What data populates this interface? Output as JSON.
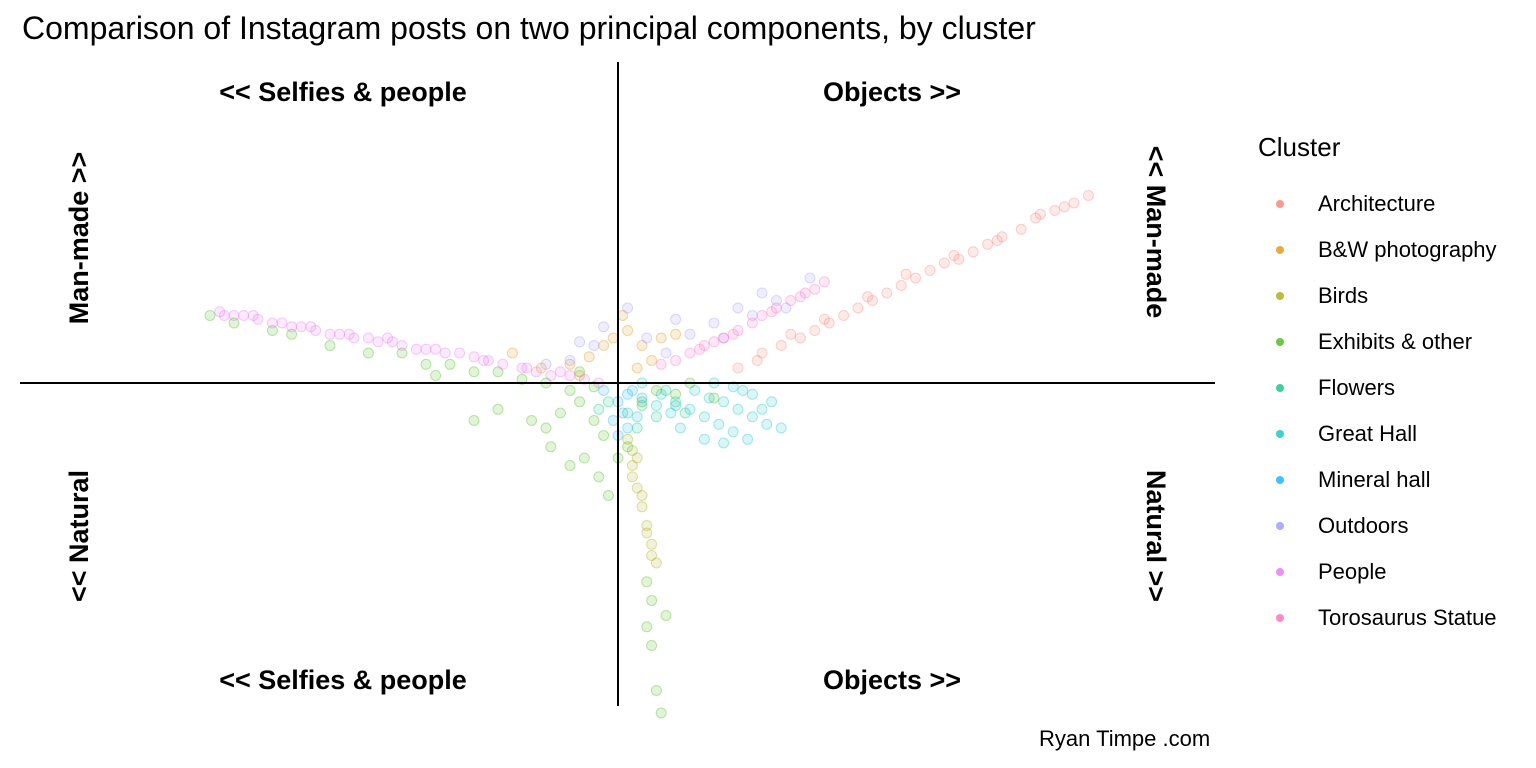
{
  "title": "Comparison of Instagram posts on two principal components, by cluster",
  "caption": "Ryan Timpe .com",
  "quadrant_labels": {
    "top_left": "<<  Selfies & people",
    "top_right": "Objects  >>",
    "bottom_left": "<<  Selfies & people",
    "bottom_right": "Objects  >>",
    "left_upper": "Man-made  >>",
    "left_lower": "<<  Natural",
    "right_upper": "<<  Man-made",
    "right_lower": "Natural  >>"
  },
  "legend": {
    "title": "Cluster",
    "position": "right"
  },
  "chart_data": {
    "type": "scatter",
    "title": "Comparison of Instagram posts on two principal components, by cluster",
    "xlabel": "",
    "ylabel": "",
    "xlim": [
      -1.0,
      1.0
    ],
    "ylim": [
      -1.0,
      1.0
    ],
    "grid": false,
    "reference_lines": {
      "x": 0,
      "y": 0
    },
    "point_alpha": 0.15,
    "legend_position": "right",
    "series": [
      {
        "name": "Architecture",
        "color": "#F8766D",
        "points": [
          [
            0.29,
            0.06
          ],
          [
            0.34,
            0.1
          ],
          [
            0.38,
            0.12
          ],
          [
            0.41,
            0.14
          ],
          [
            0.44,
            0.16
          ],
          [
            0.47,
            0.18
          ],
          [
            0.5,
            0.2
          ],
          [
            0.53,
            0.22
          ],
          [
            0.56,
            0.24
          ],
          [
            0.59,
            0.26
          ],
          [
            0.62,
            0.28
          ],
          [
            0.65,
            0.3
          ],
          [
            0.68,
            0.32
          ],
          [
            0.71,
            0.33
          ],
          [
            0.74,
            0.35
          ],
          [
            0.77,
            0.37
          ],
          [
            0.8,
            0.39
          ],
          [
            0.84,
            0.41
          ],
          [
            0.87,
            0.44
          ],
          [
            0.91,
            0.46
          ],
          [
            0.95,
            0.48
          ],
          [
            0.98,
            0.5
          ],
          [
            0.36,
            0.13
          ],
          [
            0.43,
            0.17
          ],
          [
            0.52,
            0.23
          ],
          [
            0.6,
            0.29
          ],
          [
            0.7,
            0.34
          ],
          [
            0.79,
            0.38
          ],
          [
            0.88,
            0.45
          ],
          [
            0.93,
            0.47
          ],
          [
            0.3,
            0.08
          ],
          [
            0.25,
            0.04
          ]
        ]
      },
      {
        "name": "B&W photography",
        "color": "#D89000",
        "points": [
          [
            0.01,
            0.18
          ],
          [
            0.02,
            0.14
          ],
          [
            -0.03,
            0.1
          ],
          [
            -0.06,
            0.07
          ],
          [
            0.05,
            0.1
          ],
          [
            0.09,
            0.12
          ],
          [
            0.12,
            0.13
          ],
          [
            -0.1,
            0.05
          ],
          [
            -0.16,
            0.04
          ],
          [
            -0.22,
            0.08
          ],
          [
            -0.08,
            0.02
          ],
          [
            0.04,
            0.04
          ],
          [
            0.07,
            0.06
          ],
          [
            -0.01,
            0.12
          ]
        ]
      },
      {
        "name": "Birds",
        "color": "#A3A500",
        "points": [
          [
            0.02,
            -0.15
          ],
          [
            0.03,
            -0.22
          ],
          [
            0.04,
            -0.28
          ],
          [
            0.05,
            -0.33
          ],
          [
            0.06,
            -0.38
          ],
          [
            0.07,
            -0.43
          ],
          [
            0.08,
            -0.48
          ],
          [
            0.05,
            -0.3
          ],
          [
            0.03,
            -0.25
          ],
          [
            0.06,
            -0.4
          ],
          [
            0.07,
            -0.46
          ],
          [
            0.04,
            -0.2
          ],
          [
            0.03,
            -0.18
          ]
        ]
      },
      {
        "name": "Exhibits & other",
        "color": "#39B600",
        "points": [
          [
            -0.05,
            -0.01
          ],
          [
            -0.1,
            -0.02
          ],
          [
            -0.15,
            0.0
          ],
          [
            -0.2,
            0.01
          ],
          [
            -0.25,
            0.03
          ],
          [
            -0.3,
            0.03
          ],
          [
            -0.35,
            0.05
          ],
          [
            -0.4,
            0.05
          ],
          [
            -0.45,
            0.08
          ],
          [
            -0.52,
            0.08
          ],
          [
            -0.6,
            0.1
          ],
          [
            -0.68,
            0.13
          ],
          [
            -0.72,
            0.14
          ],
          [
            -0.8,
            0.16
          ],
          [
            -0.85,
            0.18
          ],
          [
            -0.08,
            -0.05
          ],
          [
            -0.12,
            -0.08
          ],
          [
            -0.05,
            -0.1
          ],
          [
            -0.03,
            -0.14
          ],
          [
            -0.07,
            -0.2
          ],
          [
            -0.1,
            -0.22
          ],
          [
            -0.14,
            -0.17
          ],
          [
            -0.18,
            -0.1
          ],
          [
            -0.25,
            -0.07
          ],
          [
            -0.3,
            -0.1
          ],
          [
            -0.15,
            -0.12
          ],
          [
            -0.04,
            -0.25
          ],
          [
            -0.02,
            -0.3
          ],
          [
            0.0,
            -0.2
          ],
          [
            0.02,
            -0.17
          ],
          [
            0.05,
            -0.05
          ],
          [
            0.08,
            -0.02
          ],
          [
            0.12,
            -0.03
          ],
          [
            0.15,
            0.0
          ],
          [
            0.2,
            -0.04
          ],
          [
            0.06,
            -0.65
          ],
          [
            0.07,
            -0.7
          ],
          [
            0.08,
            -0.82
          ],
          [
            0.09,
            -0.88
          ],
          [
            0.06,
            -0.53
          ],
          [
            0.07,
            -0.58
          ],
          [
            0.1,
            -0.62
          ],
          [
            -0.08,
            0.03
          ],
          [
            -0.38,
            0.02
          ]
        ]
      },
      {
        "name": "Flowers",
        "color": "#00BF7D",
        "points": [
          [
            0.02,
            -0.08
          ],
          [
            0.05,
            -0.06
          ],
          [
            0.08,
            -0.09
          ],
          [
            -0.02,
            -0.05
          ],
          [
            0.1,
            -0.02
          ],
          [
            0.04,
            -0.12
          ],
          [
            0.12,
            -0.06
          ],
          [
            0.14,
            -0.08
          ],
          [
            -0.04,
            -0.07
          ]
        ]
      },
      {
        "name": "Great Hall",
        "color": "#00BFC4",
        "points": [
          [
            0.05,
            0.0
          ],
          [
            0.09,
            -0.03
          ],
          [
            0.12,
            -0.05
          ],
          [
            0.15,
            -0.07
          ],
          [
            0.18,
            -0.09
          ],
          [
            0.21,
            -0.11
          ],
          [
            0.24,
            -0.13
          ],
          [
            0.27,
            -0.15
          ],
          [
            0.16,
            -0.02
          ],
          [
            0.19,
            -0.04
          ],
          [
            0.22,
            -0.05
          ],
          [
            0.25,
            -0.07
          ],
          [
            0.28,
            -0.09
          ],
          [
            0.31,
            -0.11
          ],
          [
            0.34,
            -0.12
          ],
          [
            0.2,
            0.0
          ],
          [
            0.24,
            -0.01
          ],
          [
            0.28,
            -0.03
          ],
          [
            0.32,
            -0.05
          ],
          [
            0.26,
            -0.02
          ],
          [
            0.3,
            -0.07
          ],
          [
            0.13,
            -0.12
          ],
          [
            0.18,
            -0.15
          ],
          [
            0.22,
            -0.16
          ],
          [
            0.08,
            -0.06
          ],
          [
            0.11,
            -0.08
          ]
        ]
      },
      {
        "name": "Mineral hall",
        "color": "#00B0F6",
        "points": [
          [
            0.0,
            -0.05
          ],
          [
            0.01,
            -0.08
          ],
          [
            0.02,
            -0.12
          ],
          [
            -0.01,
            -0.1
          ],
          [
            0.03,
            -0.02
          ],
          [
            0.05,
            -0.04
          ],
          [
            0.0,
            -0.14
          ],
          [
            0.02,
            -0.03
          ],
          [
            -0.03,
            -0.02
          ],
          [
            0.04,
            -0.09
          ]
        ]
      },
      {
        "name": "Outdoors",
        "color": "#9590FF",
        "points": [
          [
            -0.05,
            0.1
          ],
          [
            -0.1,
            0.06
          ],
          [
            0.02,
            0.2
          ],
          [
            0.1,
            0.08
          ],
          [
            0.15,
            0.13
          ],
          [
            0.2,
            0.16
          ],
          [
            0.25,
            0.2
          ],
          [
            0.3,
            0.24
          ],
          [
            0.35,
            0.2
          ],
          [
            0.4,
            0.28
          ],
          [
            -0.03,
            0.15
          ],
          [
            0.06,
            0.12
          ],
          [
            0.12,
            0.17
          ],
          [
            0.22,
            0.12
          ],
          [
            0.28,
            0.18
          ],
          [
            -0.08,
            0.11
          ],
          [
            -0.15,
            0.05
          ],
          [
            0.33,
            0.22
          ]
        ]
      },
      {
        "name": "People",
        "color": "#E76BF3",
        "points": [
          [
            -0.83,
            0.19
          ],
          [
            -0.82,
            0.18
          ],
          [
            -0.8,
            0.18
          ],
          [
            -0.78,
            0.18
          ],
          [
            -0.75,
            0.17
          ],
          [
            -0.72,
            0.16
          ],
          [
            -0.7,
            0.16
          ],
          [
            -0.68,
            0.15
          ],
          [
            -0.66,
            0.15
          ],
          [
            -0.63,
            0.14
          ],
          [
            -0.6,
            0.13
          ],
          [
            -0.58,
            0.13
          ],
          [
            -0.55,
            0.12
          ],
          [
            -0.52,
            0.12
          ],
          [
            -0.5,
            0.11
          ],
          [
            -0.47,
            0.11
          ],
          [
            -0.45,
            0.1
          ],
          [
            -0.42,
            0.09
          ],
          [
            -0.4,
            0.09
          ],
          [
            -0.36,
            0.08
          ],
          [
            -0.33,
            0.08
          ],
          [
            -0.3,
            0.07
          ],
          [
            -0.27,
            0.06
          ],
          [
            -0.24,
            0.05
          ],
          [
            -0.2,
            0.04
          ],
          [
            -0.17,
            0.03
          ],
          [
            -0.14,
            0.02
          ],
          [
            -0.1,
            0.02
          ],
          [
            -0.07,
            0.01
          ],
          [
            -0.04,
            0.0
          ],
          [
            -0.76,
            0.18
          ],
          [
            -0.64,
            0.15
          ],
          [
            -0.56,
            0.13
          ],
          [
            -0.48,
            0.12
          ],
          [
            -0.38,
            0.09
          ],
          [
            -0.28,
            0.06
          ],
          [
            -0.19,
            0.04
          ],
          [
            -0.12,
            0.03
          ]
        ]
      },
      {
        "name": "Torosaurus Statue",
        "color": "#FF62BC",
        "points": [
          [
            0.15,
            0.08
          ],
          [
            0.18,
            0.1
          ],
          [
            0.2,
            0.11
          ],
          [
            0.22,
            0.12
          ],
          [
            0.25,
            0.14
          ],
          [
            0.28,
            0.16
          ],
          [
            0.3,
            0.18
          ],
          [
            0.33,
            0.2
          ],
          [
            0.36,
            0.22
          ],
          [
            0.39,
            0.24
          ],
          [
            0.41,
            0.25
          ],
          [
            0.43,
            0.27
          ],
          [
            0.17,
            0.09
          ],
          [
            0.24,
            0.13
          ],
          [
            0.32,
            0.19
          ],
          [
            0.38,
            0.23
          ],
          [
            0.12,
            0.06
          ],
          [
            0.09,
            0.05
          ]
        ]
      }
    ]
  }
}
